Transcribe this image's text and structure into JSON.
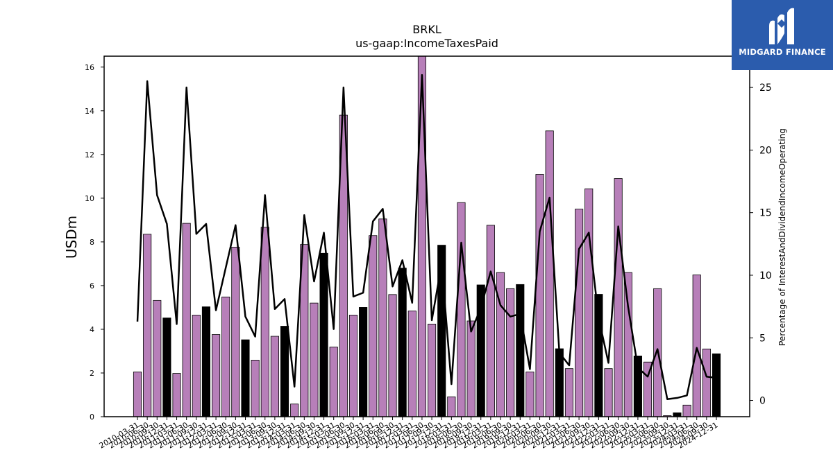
{
  "chart_data": {
    "type": "bar",
    "title": "BRKL",
    "subtitle": "us-gaap:IncomeTaxesPaid",
    "ylabel": "USDm",
    "ylabel_right": "Percentage of InterestAndDividendIncomeOperating",
    "ylim": [
      0,
      16.5
    ],
    "ylim_right": [
      -1.3,
      27.5
    ],
    "yticks": [
      0,
      2,
      4,
      6,
      8,
      10,
      12,
      14,
      16
    ],
    "yticks_right": [
      0,
      5,
      10,
      15,
      20,
      25
    ],
    "categories": [
      "2010-03-31",
      "2010-06-30",
      "2010-09-30",
      "2010-12-31",
      "2011-03-31",
      "2011-06-30",
      "2011-09-30",
      "2011-12-31",
      "2012-03-31",
      "2012-06-30",
      "2012-09-30",
      "2012-12-31",
      "2013-03-31",
      "2013-06-30",
      "2013-09-30",
      "2013-12-31",
      "2014-03-31",
      "2014-06-30",
      "2014-09-30",
      "2014-12-31",
      "2015-03-31",
      "2015-06-30",
      "2015-09-30",
      "2015-12-31",
      "2016-03-31",
      "2016-06-30",
      "2016-09-30",
      "2016-12-31",
      "2017-03-31",
      "2017-06-30",
      "2017-09-30",
      "2017-12-31",
      "2018-03-31",
      "2018-06-30",
      "2018-09-30",
      "2018-12-31",
      "2019-03-31",
      "2019-06-30",
      "2019-09-30",
      "2019-12-31",
      "2020-03-31",
      "2020-06-30",
      "2020-09-30",
      "2020-12-31",
      "2021-03-31",
      "2021-06-30",
      "2021-09-30",
      "2021-12-31",
      "2022-03-31",
      "2022-06-30",
      "2022-09-30",
      "2022-12-31",
      "2023-03-31",
      "2023-06-30",
      "2023-09-30",
      "2023-12-31",
      "2024-03-31",
      "2024-06-30",
      "2024-09-30",
      "2024-12-31"
    ],
    "series": [
      {
        "kind": "bar",
        "axis": "left",
        "values": [
          2.05,
          8.35,
          5.32,
          4.52,
          1.98,
          8.85,
          4.65,
          5.03,
          3.76,
          5.48,
          7.76,
          3.52,
          2.59,
          8.67,
          3.68,
          4.14,
          0.58,
          7.88,
          5.2,
          7.48,
          3.19,
          13.8,
          4.65,
          5.0,
          8.29,
          9.05,
          5.59,
          6.8,
          4.84,
          16.6,
          4.24,
          7.85,
          0.91,
          9.8,
          4.38,
          6.03,
          8.76,
          6.6,
          5.86,
          6.05,
          2.05,
          11.09,
          13.08,
          3.11,
          2.2,
          9.5,
          10.43,
          5.6,
          2.2,
          10.9,
          6.6,
          2.78,
          2.5,
          5.86,
          0.05,
          0.18,
          0.53,
          6.49,
          3.1,
          2.88
        ],
        "colors": [
          "#b77fb9",
          "#b77fb9",
          "#b77fb9",
          "#000000",
          "#b77fb9",
          "#b77fb9",
          "#b77fb9",
          "#000000",
          "#b77fb9",
          "#b77fb9",
          "#b77fb9",
          "#000000",
          "#b77fb9",
          "#b77fb9",
          "#b77fb9",
          "#000000",
          "#b77fb9",
          "#b77fb9",
          "#b77fb9",
          "#000000",
          "#b77fb9",
          "#b77fb9",
          "#b77fb9",
          "#000000",
          "#b77fb9",
          "#b77fb9",
          "#b77fb9",
          "#000000",
          "#b77fb9",
          "#b77fb9",
          "#b77fb9",
          "#000000",
          "#b77fb9",
          "#b77fb9",
          "#b77fb9",
          "#000000",
          "#b77fb9",
          "#b77fb9",
          "#b77fb9",
          "#000000",
          "#b77fb9",
          "#b77fb9",
          "#b77fb9",
          "#000000",
          "#b77fb9",
          "#b77fb9",
          "#b77fb9",
          "#000000",
          "#b77fb9",
          "#b77fb9",
          "#b77fb9",
          "#000000",
          "#b77fb9",
          "#b77fb9",
          "#b77fb9",
          "#000000",
          "#b77fb9",
          "#b77fb9",
          "#b77fb9",
          "#000000"
        ]
      },
      {
        "kind": "line",
        "axis": "right",
        "color": "#000000",
        "values": [
          6.3,
          25.5,
          16.4,
          14.1,
          6.1,
          25.0,
          13.3,
          14.1,
          7.2,
          10.6,
          14.0,
          6.7,
          5.1,
          16.4,
          7.3,
          8.1,
          1.1,
          14.8,
          9.5,
          13.4,
          5.7,
          25.0,
          8.3,
          8.6,
          14.3,
          15.3,
          9.1,
          11.2,
          7.8,
          26.0,
          6.4,
          10.9,
          1.3,
          12.6,
          5.5,
          7.4,
          10.3,
          7.6,
          6.7,
          6.9,
          2.5,
          13.5,
          16.2,
          3.8,
          2.8,
          12.1,
          13.4,
          6.6,
          3.0,
          13.9,
          7.5,
          2.6,
          1.9,
          4.1,
          0.1,
          0.2,
          0.4,
          4.2,
          1.9,
          1.8
        ]
      }
    ],
    "grid": false,
    "legend": "none",
    "colors": {
      "bar_regular": "#b77fb9",
      "bar_q4": "#000000",
      "line": "#000000"
    }
  },
  "logo": {
    "text": "MIDGARD FINANCE",
    "background": "#2b5cad"
  }
}
